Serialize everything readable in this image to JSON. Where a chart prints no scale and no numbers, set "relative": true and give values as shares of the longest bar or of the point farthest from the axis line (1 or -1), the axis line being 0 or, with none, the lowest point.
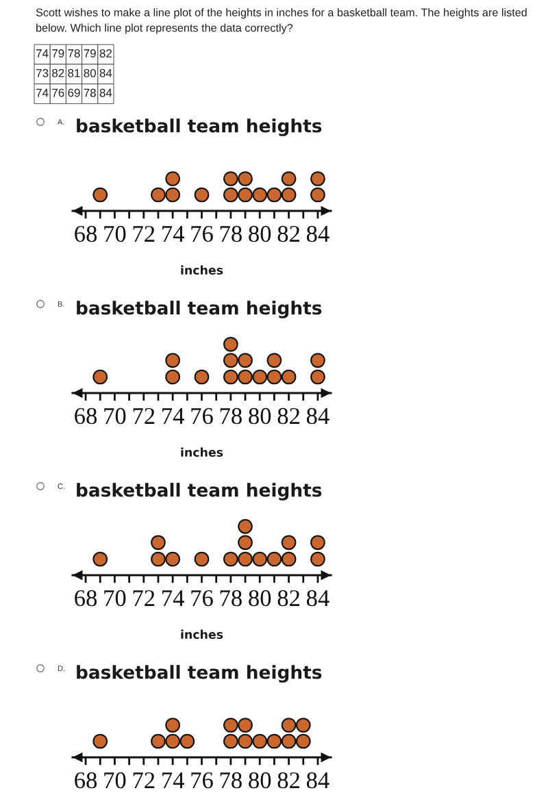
{
  "chart_data": [
    {
      "type": "other",
      "title": "Scott wishes to make a line plot of the heights in inches for a basketball team. The heights are listed below. Which line plot represents the data correctly?",
      "annotations": [
        "74",
        "79",
        "78",
        "79",
        "82",
        "73",
        "82",
        "81",
        "80",
        "84",
        "74",
        "76",
        "69",
        "78",
        "84"
      ]
    },
    {
      "type": "scatter",
      "title": "basketball team heights",
      "xlabel": "inches",
      "annotations": [
        "A."
      ],
      "relative": true,
      "marker": "circle",
      "color": "#c8672f",
      "x": [
        69,
        73,
        74,
        74,
        76,
        78,
        78,
        79,
        79,
        80,
        81,
        82,
        82,
        84,
        84
      ],
      "values": [
        0.5,
        0.5,
        0.5,
        1,
        0.5,
        0.5,
        1,
        0.5,
        1,
        0.5,
        0.5,
        0.5,
        1,
        0.5,
        1
      ],
      "xlim": [
        67.1,
        84.9
      ],
      "xticks": [
        68,
        {
          "value": 69,
          "label": null
        },
        70,
        {
          "value": 71,
          "label": null
        },
        72,
        {
          "value": 73,
          "label": null
        },
        74,
        {
          "value": 75,
          "label": null
        },
        76,
        {
          "value": 77,
          "label": null
        },
        78,
        {
          "value": 79,
          "label": null
        },
        80,
        {
          "value": 81,
          "label": null
        },
        82,
        {
          "value": 83,
          "label": null
        },
        84
      ]
    },
    {
      "type": "scatter",
      "title": "basketball team heights",
      "xlabel": "inches",
      "annotations": [
        "B."
      ],
      "relative": true,
      "marker": "circle",
      "color": "#c8672f",
      "x": [
        69,
        74,
        74,
        76,
        78,
        78,
        78,
        79,
        79,
        80,
        81,
        81,
        82,
        84,
        84
      ],
      "values": [
        0.33,
        0.33,
        0.67,
        0.33,
        0.33,
        0.67,
        1,
        0.33,
        0.67,
        0.33,
        0.33,
        0.67,
        0.33,
        0.33,
        0.67
      ],
      "xlim": [
        67.1,
        84.9
      ],
      "xticks": [
        68,
        {
          "value": 69,
          "label": null
        },
        70,
        {
          "value": 71,
          "label": null
        },
        72,
        {
          "value": 73,
          "label": null
        },
        74,
        {
          "value": 75,
          "label": null
        },
        76,
        {
          "value": 77,
          "label": null
        },
        78,
        {
          "value": 79,
          "label": null
        },
        80,
        {
          "value": 81,
          "label": null
        },
        82,
        {
          "value": 83,
          "label": null
        },
        84
      ]
    },
    {
      "type": "scatter",
      "title": "basketball team heights",
      "xlabel": "inches",
      "annotations": [
        "C."
      ],
      "relative": true,
      "marker": "circle",
      "color": "#c8672f",
      "x": [
        69,
        73,
        73,
        74,
        76,
        78,
        79,
        79,
        79,
        80,
        81,
        82,
        82,
        84,
        84
      ],
      "values": [
        0.33,
        0.33,
        0.67,
        0.33,
        0.33,
        0.33,
        0.33,
        0.67,
        1,
        0.33,
        0.33,
        0.33,
        0.67,
        0.33,
        0.67
      ],
      "xlim": [
        67.1,
        84.9
      ],
      "xticks": [
        68,
        {
          "value": 69,
          "label": null
        },
        70,
        {
          "value": 71,
          "label": null
        },
        72,
        {
          "value": 73,
          "label": null
        },
        74,
        {
          "value": 75,
          "label": null
        },
        76,
        {
          "value": 77,
          "label": null
        },
        78,
        {
          "value": 79,
          "label": null
        },
        80,
        {
          "value": 81,
          "label": null
        },
        82,
        {
          "value": 83,
          "label": null
        },
        84
      ]
    },
    {
      "type": "scatter",
      "title": "basketball team heights",
      "annotations": [
        "D."
      ],
      "relative": true,
      "marker": "circle",
      "color": "#c8672f",
      "x": [
        69,
        73,
        74,
        74,
        75,
        78,
        78,
        79,
        79,
        80,
        81,
        82,
        82,
        83,
        83
      ],
      "values": [
        0.5,
        0.5,
        0.5,
        1,
        0.5,
        0.5,
        1,
        0.5,
        1,
        0.5,
        0.5,
        0.5,
        1,
        0.5,
        1
      ],
      "xlim": [
        67.1,
        84.9
      ],
      "xticks": [
        68,
        {
          "value": 69,
          "label": null
        },
        70,
        {
          "value": 71,
          "label": null
        },
        72,
        {
          "value": 73,
          "label": null
        },
        74,
        {
          "value": 75,
          "label": null
        },
        76,
        {
          "value": 77,
          "label": null
        },
        78,
        {
          "value": 79,
          "label": null
        },
        80,
        {
          "value": 81,
          "label": null
        },
        82,
        {
          "value": 83,
          "label": null
        },
        84
      ]
    }
  ]
}
